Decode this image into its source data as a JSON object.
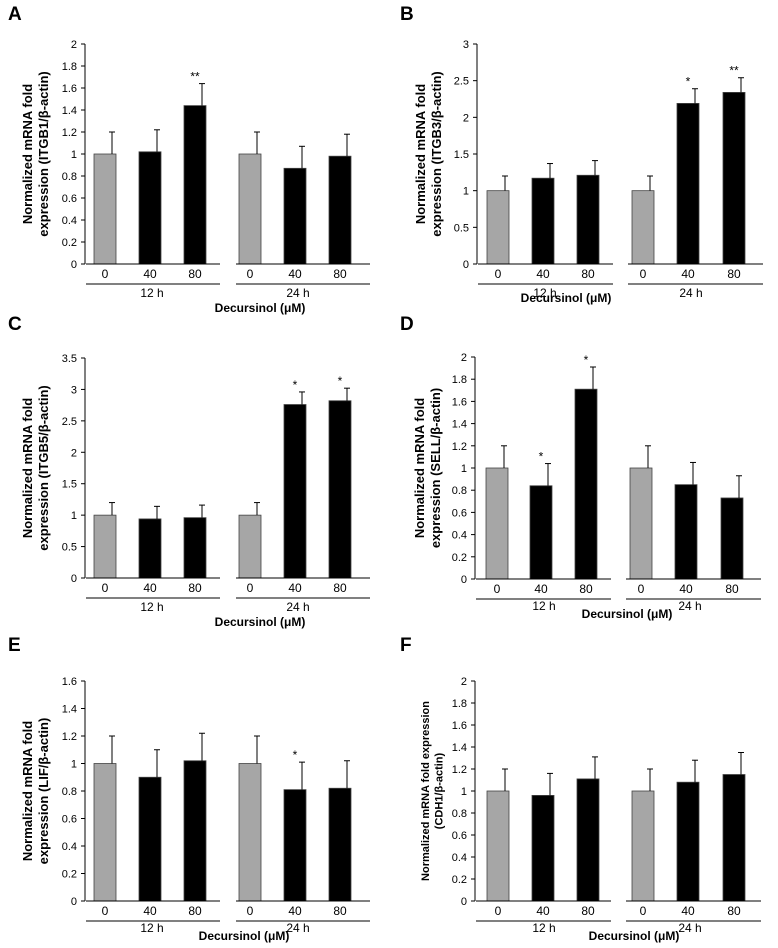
{
  "colors": {
    "control": "#a6a6a6",
    "treated": "#000000",
    "axis": "#000000",
    "bar_edge": "#444444"
  },
  "chart_data": [
    {
      "panel": "A",
      "type": "bar",
      "ylabel_lines": [
        "Normalized mRNA fold",
        "expression (ITGB1/β-actin)"
      ],
      "xlabel": "Decursinol (μM)",
      "ylim": [
        0,
        2
      ],
      "ytick_step": 0.2,
      "yticks": [
        "0",
        "0.2",
        "0.4",
        "0.6",
        "0.8",
        "1",
        "1.2",
        "1.4",
        "1.6",
        "1.8",
        "2"
      ],
      "groups": [
        {
          "label": "12 h",
          "bars": [
            {
              "category": "0",
              "value": 1.0,
              "error": 0.2,
              "sig": "",
              "control": true
            },
            {
              "category": "40",
              "value": 1.02,
              "error": 0.2,
              "sig": "",
              "control": false
            },
            {
              "category": "80",
              "value": 1.44,
              "error": 0.2,
              "sig": "**",
              "control": false
            }
          ]
        },
        {
          "label": "24 h",
          "bars": [
            {
              "category": "0",
              "value": 1.0,
              "error": 0.2,
              "sig": "",
              "control": true
            },
            {
              "category": "40",
              "value": 0.87,
              "error": 0.2,
              "sig": "",
              "control": false
            },
            {
              "category": "80",
              "value": 0.98,
              "error": 0.2,
              "sig": "",
              "control": false
            }
          ]
        }
      ]
    },
    {
      "panel": "B",
      "type": "bar",
      "ylabel_lines": [
        "Normalized mRNA fold",
        "expression (ITGB3/β-actin)"
      ],
      "xlabel": "Decursinol (μM)",
      "ylim": [
        0,
        3
      ],
      "ytick_step": 0.5,
      "yticks": [
        "0",
        "0.5",
        "1",
        "1.5",
        "2",
        "2.5",
        "3"
      ],
      "groups": [
        {
          "label": "12 h",
          "bars": [
            {
              "category": "0",
              "value": 1.0,
              "error": 0.2,
              "sig": "",
              "control": true
            },
            {
              "category": "40",
              "value": 1.17,
              "error": 0.2,
              "sig": "",
              "control": false
            },
            {
              "category": "80",
              "value": 1.21,
              "error": 0.2,
              "sig": "",
              "control": false
            }
          ]
        },
        {
          "label": "24 h",
          "bars": [
            {
              "category": "0",
              "value": 1.0,
              "error": 0.2,
              "sig": "",
              "control": true
            },
            {
              "category": "40",
              "value": 2.19,
              "error": 0.2,
              "sig": "*",
              "control": false
            },
            {
              "category": "80",
              "value": 2.34,
              "error": 0.2,
              "sig": "**",
              "control": false
            }
          ]
        }
      ]
    },
    {
      "panel": "C",
      "type": "bar",
      "ylabel_lines": [
        "Normalized mRNA fold",
        "expression (ITGB5/β-actin)"
      ],
      "xlabel": "Decursinol (μM)",
      "ylim": [
        0,
        3.5
      ],
      "ytick_step": 0.5,
      "yticks": [
        "0",
        "0.5",
        "1",
        "1.5",
        "2",
        "2.5",
        "3",
        "3.5"
      ],
      "groups": [
        {
          "label": "12 h",
          "bars": [
            {
              "category": "0",
              "value": 1.0,
              "error": 0.2,
              "sig": "",
              "control": true
            },
            {
              "category": "40",
              "value": 0.94,
              "error": 0.2,
              "sig": "",
              "control": false
            },
            {
              "category": "80",
              "value": 0.96,
              "error": 0.2,
              "sig": "",
              "control": false
            }
          ]
        },
        {
          "label": "24 h",
          "bars": [
            {
              "category": "0",
              "value": 1.0,
              "error": 0.2,
              "sig": "",
              "control": true
            },
            {
              "category": "40",
              "value": 2.76,
              "error": 0.2,
              "sig": "*",
              "control": false
            },
            {
              "category": "80",
              "value": 2.82,
              "error": 0.2,
              "sig": "*",
              "control": false
            }
          ]
        }
      ]
    },
    {
      "panel": "D",
      "type": "bar",
      "ylabel_lines": [
        "Normalized mRNA fold",
        "expression (SELL/β-actin)"
      ],
      "xlabel": "Decursinol (μM)",
      "ylim": [
        0,
        2
      ],
      "ytick_step": 0.2,
      "yticks": [
        "0",
        "0.2",
        "0.4",
        "0.6",
        "0.8",
        "1",
        "1.2",
        "1.4",
        "1.6",
        "1.8",
        "2"
      ],
      "groups": [
        {
          "label": "12 h",
          "bars": [
            {
              "category": "0",
              "value": 1.0,
              "error": 0.2,
              "sig": "",
              "control": true
            },
            {
              "category": "40",
              "value": 0.84,
              "error": 0.2,
              "sig": "*",
              "control": false
            },
            {
              "category": "80",
              "value": 1.71,
              "error": 0.2,
              "sig": "*",
              "control": false
            }
          ]
        },
        {
          "label": "24 h",
          "bars": [
            {
              "category": "0",
              "value": 1.0,
              "error": 0.2,
              "sig": "",
              "control": true
            },
            {
              "category": "40",
              "value": 0.85,
              "error": 0.2,
              "sig": "",
              "control": false
            },
            {
              "category": "80",
              "value": 0.73,
              "error": 0.2,
              "sig": "",
              "control": false
            }
          ]
        }
      ]
    },
    {
      "panel": "E",
      "type": "bar",
      "ylabel_lines": [
        "Normalized mRNA fold",
        "expression (LIF/β-actin)"
      ],
      "xlabel": "Decursinol (μM)",
      "ylim": [
        0,
        1.6
      ],
      "ytick_step": 0.2,
      "yticks": [
        "0",
        "0.2",
        "0.4",
        "0.6",
        "0.8",
        "1",
        "1.2",
        "1.4",
        "1.6"
      ],
      "groups": [
        {
          "label": "12 h",
          "bars": [
            {
              "category": "0",
              "value": 1.0,
              "error": 0.2,
              "sig": "",
              "control": true
            },
            {
              "category": "40",
              "value": 0.9,
              "error": 0.2,
              "sig": "",
              "control": false
            },
            {
              "category": "80",
              "value": 1.02,
              "error": 0.2,
              "sig": "",
              "control": false
            }
          ]
        },
        {
          "label": "24 h",
          "bars": [
            {
              "category": "0",
              "value": 1.0,
              "error": 0.2,
              "sig": "",
              "control": true
            },
            {
              "category": "40",
              "value": 0.81,
              "error": 0.2,
              "sig": "*",
              "control": false
            },
            {
              "category": "80",
              "value": 0.82,
              "error": 0.2,
              "sig": "",
              "control": false
            }
          ]
        }
      ]
    },
    {
      "panel": "F",
      "type": "bar",
      "ylabel_lines": [
        "Normalized mRNA fold expression",
        "(CDH1/β-actin)"
      ],
      "xlabel": "Decursinol (μM)",
      "ylim": [
        0,
        2
      ],
      "ytick_step": 0.2,
      "yticks": [
        "0",
        "0.2",
        "0.4",
        "0.6",
        "0.8",
        "1",
        "1.2",
        "1.4",
        "1.6",
        "1.8",
        "2"
      ],
      "groups": [
        {
          "label": "12 h",
          "bars": [
            {
              "category": "0",
              "value": 1.0,
              "error": 0.2,
              "sig": "",
              "control": true
            },
            {
              "category": "40",
              "value": 0.96,
              "error": 0.2,
              "sig": "",
              "control": false
            },
            {
              "category": "80",
              "value": 1.11,
              "error": 0.2,
              "sig": "",
              "control": false
            }
          ]
        },
        {
          "label": "24 h",
          "bars": [
            {
              "category": "0",
              "value": 1.0,
              "error": 0.2,
              "sig": "",
              "control": true
            },
            {
              "category": "40",
              "value": 1.08,
              "error": 0.2,
              "sig": "",
              "control": false
            },
            {
              "category": "80",
              "value": 1.15,
              "error": 0.2,
              "sig": "",
              "control": false
            }
          ]
        }
      ]
    }
  ]
}
